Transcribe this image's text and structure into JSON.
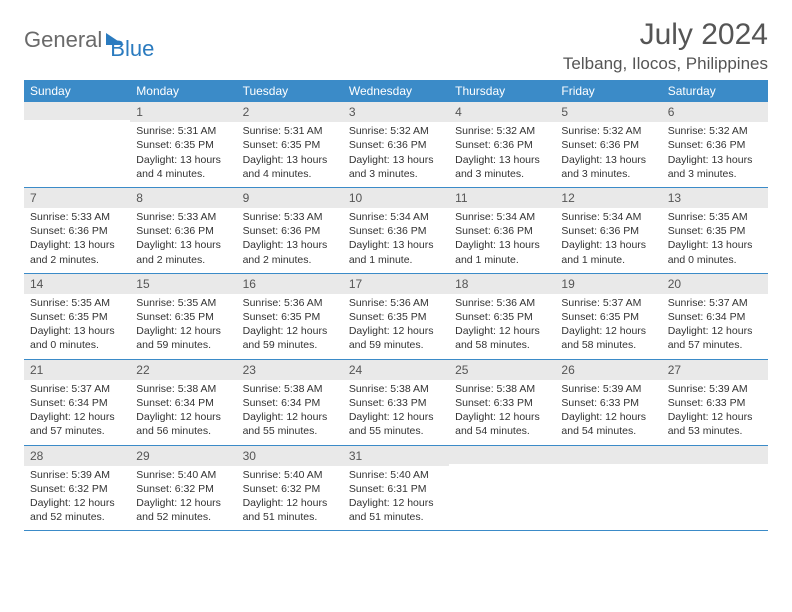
{
  "logo": {
    "text1": "General",
    "text2": "Blue"
  },
  "title": "July 2024",
  "location": "Telbang, Ilocos, Philippines",
  "colors": {
    "header_bg": "#3b8bc8",
    "header_text": "#ffffff",
    "daynum_bg": "#e9e9e9",
    "row_border": "#3b8bc8",
    "logo_gray": "#6a6a6a",
    "logo_blue": "#2b7bbf",
    "body_text": "#333333",
    "background": "#ffffff"
  },
  "day_headers": [
    "Sunday",
    "Monday",
    "Tuesday",
    "Wednesday",
    "Thursday",
    "Friday",
    "Saturday"
  ],
  "weeks": [
    [
      {
        "num": "",
        "sunrise": "",
        "sunset": "",
        "daylight": ""
      },
      {
        "num": "1",
        "sunrise": "Sunrise: 5:31 AM",
        "sunset": "Sunset: 6:35 PM",
        "daylight": "Daylight: 13 hours and 4 minutes."
      },
      {
        "num": "2",
        "sunrise": "Sunrise: 5:31 AM",
        "sunset": "Sunset: 6:35 PM",
        "daylight": "Daylight: 13 hours and 4 minutes."
      },
      {
        "num": "3",
        "sunrise": "Sunrise: 5:32 AM",
        "sunset": "Sunset: 6:36 PM",
        "daylight": "Daylight: 13 hours and 3 minutes."
      },
      {
        "num": "4",
        "sunrise": "Sunrise: 5:32 AM",
        "sunset": "Sunset: 6:36 PM",
        "daylight": "Daylight: 13 hours and 3 minutes."
      },
      {
        "num": "5",
        "sunrise": "Sunrise: 5:32 AM",
        "sunset": "Sunset: 6:36 PM",
        "daylight": "Daylight: 13 hours and 3 minutes."
      },
      {
        "num": "6",
        "sunrise": "Sunrise: 5:32 AM",
        "sunset": "Sunset: 6:36 PM",
        "daylight": "Daylight: 13 hours and 3 minutes."
      }
    ],
    [
      {
        "num": "7",
        "sunrise": "Sunrise: 5:33 AM",
        "sunset": "Sunset: 6:36 PM",
        "daylight": "Daylight: 13 hours and 2 minutes."
      },
      {
        "num": "8",
        "sunrise": "Sunrise: 5:33 AM",
        "sunset": "Sunset: 6:36 PM",
        "daylight": "Daylight: 13 hours and 2 minutes."
      },
      {
        "num": "9",
        "sunrise": "Sunrise: 5:33 AM",
        "sunset": "Sunset: 6:36 PM",
        "daylight": "Daylight: 13 hours and 2 minutes."
      },
      {
        "num": "10",
        "sunrise": "Sunrise: 5:34 AM",
        "sunset": "Sunset: 6:36 PM",
        "daylight": "Daylight: 13 hours and 1 minute."
      },
      {
        "num": "11",
        "sunrise": "Sunrise: 5:34 AM",
        "sunset": "Sunset: 6:36 PM",
        "daylight": "Daylight: 13 hours and 1 minute."
      },
      {
        "num": "12",
        "sunrise": "Sunrise: 5:34 AM",
        "sunset": "Sunset: 6:36 PM",
        "daylight": "Daylight: 13 hours and 1 minute."
      },
      {
        "num": "13",
        "sunrise": "Sunrise: 5:35 AM",
        "sunset": "Sunset: 6:35 PM",
        "daylight": "Daylight: 13 hours and 0 minutes."
      }
    ],
    [
      {
        "num": "14",
        "sunrise": "Sunrise: 5:35 AM",
        "sunset": "Sunset: 6:35 PM",
        "daylight": "Daylight: 13 hours and 0 minutes."
      },
      {
        "num": "15",
        "sunrise": "Sunrise: 5:35 AM",
        "sunset": "Sunset: 6:35 PM",
        "daylight": "Daylight: 12 hours and 59 minutes."
      },
      {
        "num": "16",
        "sunrise": "Sunrise: 5:36 AM",
        "sunset": "Sunset: 6:35 PM",
        "daylight": "Daylight: 12 hours and 59 minutes."
      },
      {
        "num": "17",
        "sunrise": "Sunrise: 5:36 AM",
        "sunset": "Sunset: 6:35 PM",
        "daylight": "Daylight: 12 hours and 59 minutes."
      },
      {
        "num": "18",
        "sunrise": "Sunrise: 5:36 AM",
        "sunset": "Sunset: 6:35 PM",
        "daylight": "Daylight: 12 hours and 58 minutes."
      },
      {
        "num": "19",
        "sunrise": "Sunrise: 5:37 AM",
        "sunset": "Sunset: 6:35 PM",
        "daylight": "Daylight: 12 hours and 58 minutes."
      },
      {
        "num": "20",
        "sunrise": "Sunrise: 5:37 AM",
        "sunset": "Sunset: 6:34 PM",
        "daylight": "Daylight: 12 hours and 57 minutes."
      }
    ],
    [
      {
        "num": "21",
        "sunrise": "Sunrise: 5:37 AM",
        "sunset": "Sunset: 6:34 PM",
        "daylight": "Daylight: 12 hours and 57 minutes."
      },
      {
        "num": "22",
        "sunrise": "Sunrise: 5:38 AM",
        "sunset": "Sunset: 6:34 PM",
        "daylight": "Daylight: 12 hours and 56 minutes."
      },
      {
        "num": "23",
        "sunrise": "Sunrise: 5:38 AM",
        "sunset": "Sunset: 6:34 PM",
        "daylight": "Daylight: 12 hours and 55 minutes."
      },
      {
        "num": "24",
        "sunrise": "Sunrise: 5:38 AM",
        "sunset": "Sunset: 6:33 PM",
        "daylight": "Daylight: 12 hours and 55 minutes."
      },
      {
        "num": "25",
        "sunrise": "Sunrise: 5:38 AM",
        "sunset": "Sunset: 6:33 PM",
        "daylight": "Daylight: 12 hours and 54 minutes."
      },
      {
        "num": "26",
        "sunrise": "Sunrise: 5:39 AM",
        "sunset": "Sunset: 6:33 PM",
        "daylight": "Daylight: 12 hours and 54 minutes."
      },
      {
        "num": "27",
        "sunrise": "Sunrise: 5:39 AM",
        "sunset": "Sunset: 6:33 PM",
        "daylight": "Daylight: 12 hours and 53 minutes."
      }
    ],
    [
      {
        "num": "28",
        "sunrise": "Sunrise: 5:39 AM",
        "sunset": "Sunset: 6:32 PM",
        "daylight": "Daylight: 12 hours and 52 minutes."
      },
      {
        "num": "29",
        "sunrise": "Sunrise: 5:40 AM",
        "sunset": "Sunset: 6:32 PM",
        "daylight": "Daylight: 12 hours and 52 minutes."
      },
      {
        "num": "30",
        "sunrise": "Sunrise: 5:40 AM",
        "sunset": "Sunset: 6:32 PM",
        "daylight": "Daylight: 12 hours and 51 minutes."
      },
      {
        "num": "31",
        "sunrise": "Sunrise: 5:40 AM",
        "sunset": "Sunset: 6:31 PM",
        "daylight": "Daylight: 12 hours and 51 minutes."
      },
      {
        "num": "",
        "sunrise": "",
        "sunset": "",
        "daylight": ""
      },
      {
        "num": "",
        "sunrise": "",
        "sunset": "",
        "daylight": ""
      },
      {
        "num": "",
        "sunrise": "",
        "sunset": "",
        "daylight": ""
      }
    ]
  ]
}
